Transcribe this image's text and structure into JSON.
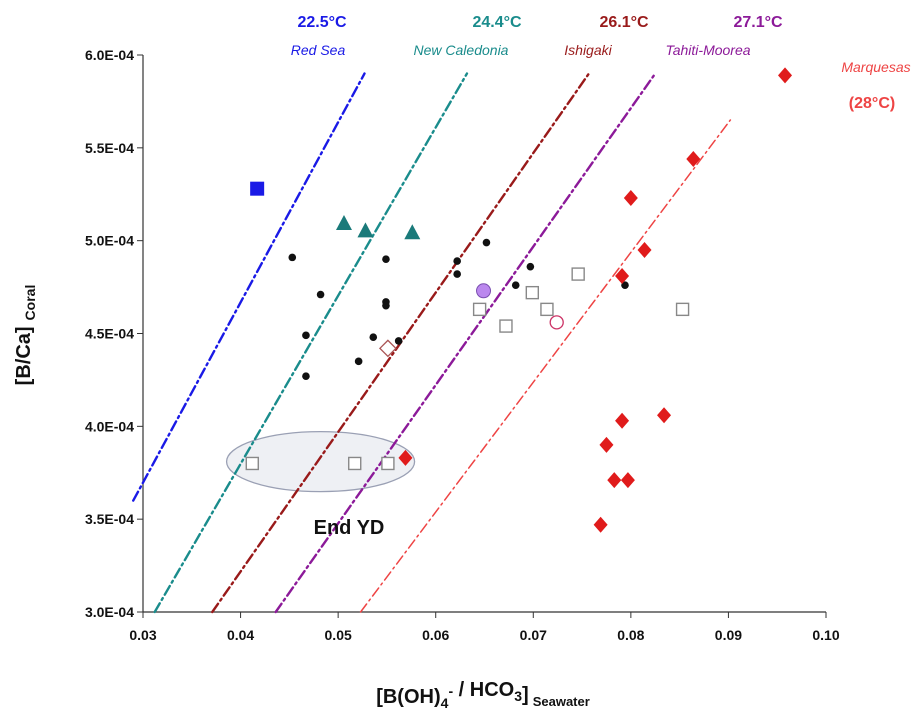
{
  "chart_data": {
    "type": "scatter",
    "xlim": [
      0.03,
      0.1
    ],
    "ylim": [
      0.0003,
      0.0006
    ],
    "x_ticks": [
      "0.03",
      "0.04",
      "0.05",
      "0.06",
      "0.07",
      "0.08",
      "0.09",
      "0.10"
    ],
    "y_ticks": [
      "3.0E-04",
      "3.5E-04",
      "4.0E-04",
      "4.5E-04",
      "5.0E-04",
      "5.5E-04",
      "6.0E-04"
    ],
    "xlabel": {
      "main": "[B(OH)",
      "sub_a": "4",
      "sup": "-",
      "mid": " /  HCO",
      "sub_b": "3",
      "end": "]",
      "suffix": "Seawater"
    },
    "ylabel": {
      "main": "[B/Ca]",
      "suffix": "Coral"
    },
    "grid": false,
    "lines": [
      {
        "site": "Red Sea",
        "temp": "22.5°C",
        "color": "#1a1ae6",
        "x": [
          0.029,
          0.0527
        ],
        "y": [
          0.00036,
          0.00059
        ]
      },
      {
        "site": "New Caledonia",
        "temp": "24.4°C",
        "color": "#1a8c8c",
        "x": [
          0.0312,
          0.0632
        ],
        "y": [
          0.0003,
          0.00059
        ]
      },
      {
        "site": "Ishigaki",
        "temp": "26.1°C",
        "color": "#991a1a",
        "x": [
          0.0371,
          0.0757
        ],
        "y": [
          0.0003,
          0.00059
        ]
      },
      {
        "site": "Tahiti-Moorea",
        "temp": "27.1°C",
        "color": "#8c1a99",
        "x": [
          0.0436,
          0.0825
        ],
        "y": [
          0.0003,
          0.00059
        ]
      },
      {
        "site": "Marquesas",
        "temp": "(28°C)",
        "color": "#ee4444",
        "x": [
          0.0523,
          0.0902
        ],
        "y": [
          0.0003,
          0.000565
        ]
      }
    ],
    "series": [
      {
        "marker": "square-filled",
        "color": "#1a1ae6",
        "points": [
          [
            0.0417,
            0.000528
          ]
        ]
      },
      {
        "marker": "triangle-filled",
        "color": "#1a7a7a",
        "points": [
          [
            0.0506,
            0.000509
          ],
          [
            0.0528,
            0.000505
          ],
          [
            0.0576,
            0.000504
          ]
        ]
      },
      {
        "marker": "circle-small",
        "color": "#111111",
        "points": [
          [
            0.0453,
            0.000491
          ],
          [
            0.0482,
            0.000471
          ],
          [
            0.0467,
            0.000449
          ],
          [
            0.0467,
            0.000427
          ],
          [
            0.0549,
            0.00049
          ],
          [
            0.0549,
            0.000467
          ],
          [
            0.0549,
            0.000465
          ],
          [
            0.0536,
            0.000448
          ],
          [
            0.0521,
            0.000435
          ],
          [
            0.0562,
            0.000446
          ],
          [
            0.0622,
            0.000489
          ],
          [
            0.0622,
            0.000482
          ],
          [
            0.0652,
            0.000499
          ],
          [
            0.0697,
            0.000486
          ],
          [
            0.0682,
            0.000476
          ],
          [
            0.0794,
            0.000476
          ]
        ]
      },
      {
        "marker": "square-open",
        "color": "#888888",
        "points": [
          [
            0.0412,
            0.00038
          ],
          [
            0.0517,
            0.00038
          ],
          [
            0.0551,
            0.00038
          ],
          [
            0.0645,
            0.000463
          ],
          [
            0.0672,
            0.000454
          ],
          [
            0.0699,
            0.000472
          ],
          [
            0.0714,
            0.000463
          ],
          [
            0.0746,
            0.000482
          ],
          [
            0.0853,
            0.000463
          ]
        ]
      },
      {
        "marker": "diamond-open",
        "color": "#aa5555",
        "points": [
          [
            0.0551,
            0.000442
          ]
        ]
      },
      {
        "marker": "circle-filled",
        "color": "#bb88ee",
        "points": [
          [
            0.0649,
            0.000473
          ]
        ]
      },
      {
        "marker": "circle-open",
        "color": "#cc3366",
        "points": [
          [
            0.0724,
            0.000456
          ]
        ]
      },
      {
        "marker": "diamond-filled",
        "color": "#e01b1b",
        "points": [
          [
            0.0958,
            0.000589
          ],
          [
            0.0864,
            0.000544
          ],
          [
            0.08,
            0.000523
          ],
          [
            0.0814,
            0.000495
          ],
          [
            0.0791,
            0.000481
          ],
          [
            0.0791,
            0.000403
          ],
          [
            0.0834,
            0.000406
          ],
          [
            0.0775,
            0.00039
          ],
          [
            0.0783,
            0.000371
          ],
          [
            0.0797,
            0.000371
          ],
          [
            0.0769,
            0.000347
          ],
          [
            0.0569,
            0.000383
          ]
        ]
      }
    ],
    "annotation": {
      "text": "End YD",
      "ellipse_center": [
        0.0482,
        0.000381
      ]
    }
  }
}
